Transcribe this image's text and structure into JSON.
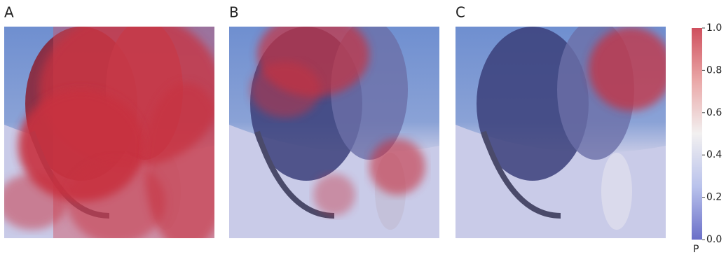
{
  "chart_data": {
    "type": "heatmap",
    "panels": [
      "A",
      "B",
      "C"
    ],
    "colorbar_label": "P",
    "zlim": [
      0,
      1
    ],
    "zticks": [
      {
        "value": 0,
        "label": "0.0"
      },
      0.2,
      0.4,
      0.6,
      0.8,
      {
        "value": 1,
        "label": "1.0"
      }
    ],
    "colormap": [
      "#6a6fc8",
      "#b9c2ec",
      "#f2f0f0",
      "#eaa8a8",
      "#cf4f5d"
    ]
  }
}
